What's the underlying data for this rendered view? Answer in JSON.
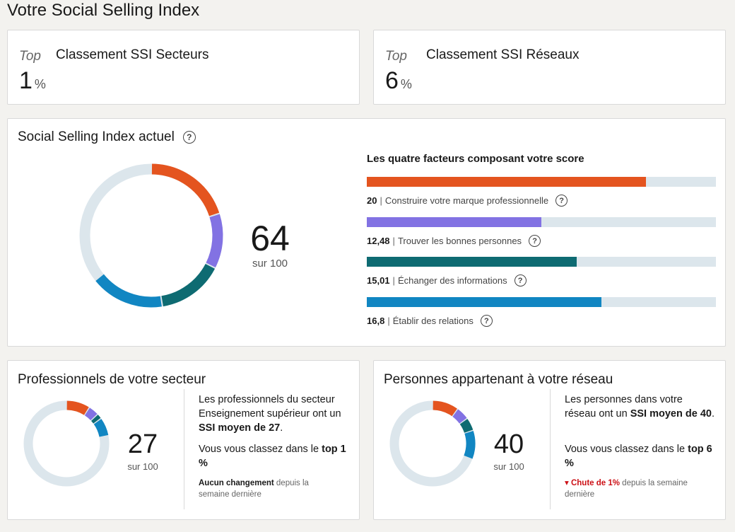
{
  "page": {
    "title": "Votre Social Selling Index"
  },
  "ranks": [
    {
      "top_label": "Top",
      "title": "Classement SSI Secteurs",
      "value": "1",
      "unit": "%"
    },
    {
      "top_label": "Top",
      "title": "Classement SSI Réseaux",
      "value": "6",
      "unit": "%"
    }
  ],
  "current": {
    "title": "Social Selling Index actuel",
    "help_icon": "question-circle-icon",
    "score": "64",
    "score_sub": "sur 100",
    "factors_title": "Les quatre facteurs composant votre score",
    "factors": [
      {
        "value": "20",
        "label": "Construire votre marque professionnelle",
        "fraction": 0.8,
        "color": "#e4541f"
      },
      {
        "value": "12,48",
        "label": "Trouver les bonnes personnes",
        "fraction": 0.4992,
        "color": "#8272e3"
      },
      {
        "value": "15,01",
        "label": "Échanger des informations",
        "fraction": 0.6004,
        "color": "#0e6b72"
      },
      {
        "value": "16,8",
        "label": "Établir des relations",
        "fraction": 0.672,
        "color": "#1186c2"
      }
    ],
    "track_color": "#dce6ec"
  },
  "sector": {
    "title": "Professionnels de votre secteur",
    "score": "27",
    "score_sub": "sur 100",
    "description_pre": "Les professionnels du secteur Enseignement supérieur ont un ",
    "description_bold": "SSI moyen de 27",
    "description_post": ".",
    "rank_pre": "Vous vous classez dans le ",
    "rank_bold": "top 1 %",
    "change_bold": "Aucun changement",
    "change_rest": " depuis la semaine dernière",
    "segments": [
      9,
      4,
      2,
      7
    ]
  },
  "network": {
    "title": "Personnes appartenant à votre réseau",
    "score": "40",
    "score_sub": "sur 100",
    "description_pre": "Les personnes dans votre réseau ont un ",
    "description_bold": "SSI moyen de 40",
    "description_post": ".",
    "rank_pre": "Vous vous classez dans le ",
    "rank_bold": "top 6 %",
    "change_bold": "▾ Chute de 1%",
    "change_rest": " depuis la semaine dernière",
    "segments": [
      10,
      5,
      5,
      11
    ]
  }
}
